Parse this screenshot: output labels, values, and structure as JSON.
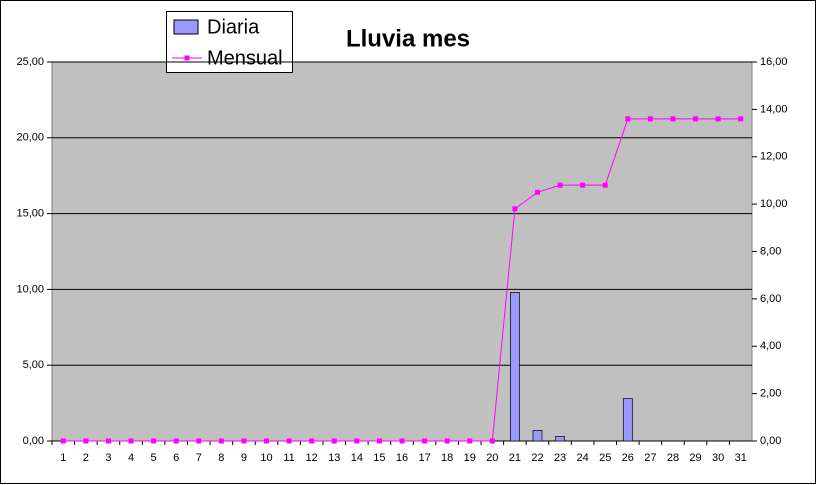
{
  "chart_data": {
    "type": "bar_line",
    "title": "Lluvia mes",
    "categories": [
      "1",
      "2",
      "3",
      "4",
      "5",
      "6",
      "7",
      "8",
      "9",
      "10",
      "11",
      "12",
      "13",
      "14",
      "15",
      "16",
      "17",
      "18",
      "19",
      "20",
      "21",
      "22",
      "23",
      "24",
      "25",
      "26",
      "27",
      "28",
      "29",
      "30",
      "31"
    ],
    "series": [
      {
        "name": "Diaria",
        "type": "bar",
        "color": "#9999ff",
        "values": [
          0,
          0,
          0,
          0,
          0,
          0,
          0,
          0,
          0,
          0,
          0,
          0,
          0,
          0,
          0,
          0,
          0,
          0,
          0,
          0,
          9.8,
          0.7,
          0.3,
          0,
          0,
          2.8,
          0,
          0,
          0,
          0,
          0
        ]
      },
      {
        "name": "Mensual",
        "type": "line",
        "axis": "y2",
        "color": "#ff00ff",
        "values": [
          0,
          0,
          0,
          0,
          0,
          0,
          0,
          0,
          0,
          0,
          0,
          0,
          0,
          0,
          0,
          0,
          0,
          0,
          0,
          0,
          9.8,
          10.5,
          10.8,
          10.8,
          10.8,
          13.6,
          13.6,
          13.6,
          13.6,
          13.6,
          13.6
        ]
      }
    ],
    "ylim": [
      0,
      25
    ],
    "yticks": [
      {
        "value": 0,
        "label": "0,00"
      },
      {
        "value": 5,
        "label": "5,00"
      },
      {
        "value": 10,
        "label": "10,00"
      },
      {
        "value": 15,
        "label": "15,00"
      },
      {
        "value": 20,
        "label": "20,00"
      },
      {
        "value": 25,
        "label": "25,00"
      }
    ],
    "y2lim": [
      0,
      16
    ],
    "y2ticks": [
      {
        "value": 0,
        "label": "0,00"
      },
      {
        "value": 2,
        "label": "2,00"
      },
      {
        "value": 4,
        "label": "4,00"
      },
      {
        "value": 6,
        "label": "6,00"
      },
      {
        "value": 8,
        "label": "8,00"
      },
      {
        "value": 10,
        "label": "10,00"
      },
      {
        "value": 12,
        "label": "12,00"
      },
      {
        "value": 14,
        "label": "14,00"
      },
      {
        "value": 16,
        "label": "16,00"
      }
    ],
    "grid": true
  }
}
